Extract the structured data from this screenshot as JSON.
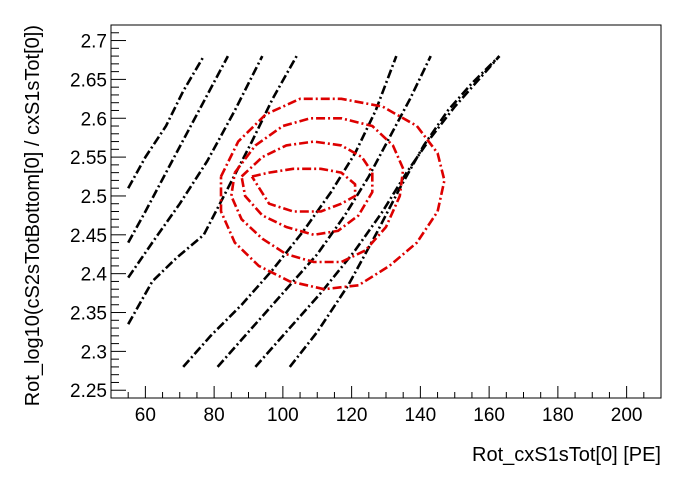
{
  "chart_data": {
    "type": "line",
    "title": "",
    "xlabel": "Rot_cxS1sTot[0]  [PE]",
    "ylabel": "Rot_log10(cS2sTotBottom[0] / cxS1sTot[0])",
    "xlim": [
      50,
      210
    ],
    "ylim": [
      2.24,
      2.72
    ],
    "x_ticks": [
      60,
      80,
      100,
      120,
      140,
      160,
      180,
      200
    ],
    "x_tick_labels": [
      "60",
      "80",
      "100",
      "120",
      "140",
      "160",
      "180",
      "200"
    ],
    "y_ticks": [
      2.25,
      2.3,
      2.35,
      2.4,
      2.45,
      2.5,
      2.55,
      2.6,
      2.65,
      2.7
    ],
    "y_tick_labels": [
      "2.25",
      "2.3",
      "2.35",
      "2.4",
      "2.45",
      "2.5",
      "2.55",
      "2.6",
      "2.65",
      "2.7"
    ],
    "grid": false,
    "colors": {
      "band_lines": "#000000",
      "contours": "#dd0000"
    },
    "band_lines": [
      {
        "x": [
          55,
          60,
          66,
          71,
          77
        ],
        "y": [
          2.51,
          2.55,
          2.59,
          2.635,
          2.68
        ]
      },
      {
        "x": [
          55,
          60,
          66,
          72,
          78,
          84
        ],
        "y": [
          2.44,
          2.48,
          2.53,
          2.58,
          2.63,
          2.68
        ]
      },
      {
        "x": [
          55,
          62,
          70,
          78,
          86,
          94
        ],
        "y": [
          2.395,
          2.44,
          2.49,
          2.545,
          2.61,
          2.68
        ]
      },
      {
        "x": [
          55,
          62,
          69,
          77,
          84,
          91,
          97,
          104
        ],
        "y": [
          2.335,
          2.39,
          2.42,
          2.45,
          2.51,
          2.57,
          2.625,
          2.68
        ]
      },
      {
        "x": [
          71,
          79,
          88,
          97,
          106,
          114,
          121,
          127,
          133
        ],
        "y": [
          2.28,
          2.32,
          2.36,
          2.405,
          2.455,
          2.505,
          2.555,
          2.61,
          2.68
        ]
      },
      {
        "x": [
          81,
          90,
          100,
          110,
          118,
          125,
          131,
          137,
          143
        ],
        "y": [
          2.28,
          2.325,
          2.375,
          2.425,
          2.475,
          2.525,
          2.575,
          2.625,
          2.68
        ]
      },
      {
        "x": [
          92,
          101,
          111,
          121,
          129,
          136,
          143,
          150,
          156,
          163
        ],
        "y": [
          2.28,
          2.325,
          2.375,
          2.43,
          2.48,
          2.53,
          2.575,
          2.615,
          2.645,
          2.68
        ]
      },
      {
        "x": [
          102,
          110,
          119,
          127,
          134,
          141,
          148,
          155,
          163
        ],
        "y": [
          2.28,
          2.325,
          2.385,
          2.45,
          2.51,
          2.565,
          2.61,
          2.645,
          2.68
        ]
      }
    ],
    "contours": [
      {
        "x": [
          91,
          96,
          103,
          111,
          117,
          121,
          121,
          117,
          111,
          103,
          96,
          91
        ],
        "y": [
          2.525,
          2.53,
          2.535,
          2.535,
          2.53,
          2.515,
          2.5,
          2.49,
          2.48,
          2.48,
          2.49,
          2.525
        ]
      },
      {
        "x": [
          88,
          94,
          101,
          109,
          117,
          123,
          126,
          126,
          122,
          116,
          109,
          101,
          94,
          89,
          88
        ],
        "y": [
          2.525,
          2.55,
          2.565,
          2.57,
          2.565,
          2.55,
          2.53,
          2.505,
          2.475,
          2.455,
          2.45,
          2.46,
          2.475,
          2.5,
          2.525
        ]
      },
      {
        "x": [
          86,
          92,
          100,
          108,
          117,
          126,
          132,
          135,
          134,
          130,
          124,
          117,
          109,
          101,
          94,
          88,
          85,
          86
        ],
        "y": [
          2.53,
          2.565,
          2.59,
          2.6,
          2.6,
          2.59,
          2.565,
          2.535,
          2.5,
          2.46,
          2.43,
          2.415,
          2.415,
          2.425,
          2.445,
          2.47,
          2.5,
          2.53
        ]
      },
      {
        "x": [
          82,
          87,
          95,
          105,
          117,
          129,
          139,
          145,
          147,
          145,
          139,
          131,
          122,
          112,
          102,
          93,
          86,
          82,
          82
        ],
        "y": [
          2.525,
          2.57,
          2.605,
          2.625,
          2.625,
          2.615,
          2.59,
          2.555,
          2.52,
          2.48,
          2.44,
          2.41,
          2.385,
          2.38,
          2.39,
          2.41,
          2.44,
          2.48,
          2.525
        ]
      }
    ]
  }
}
